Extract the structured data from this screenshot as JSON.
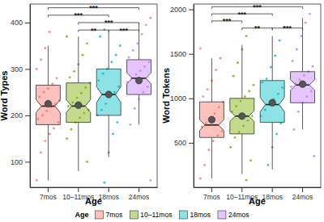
{
  "chart_data": [
    {
      "type": "box",
      "x_label": "Age",
      "y_label": "Word Types",
      "categories": [
        "7mos",
        "10–11mos",
        "18mos",
        "24mos"
      ],
      "colors": [
        "#F8766D",
        "#7CAE00",
        "#00BFC4",
        "#C77CFF"
      ],
      "ylim": [
        45,
        440
      ],
      "yticks": [
        100,
        200,
        300,
        400
      ],
      "grid": false,
      "legend": "bottom",
      "legend_title": "Age",
      "boxes": [
        {
          "whisker_low": 60,
          "q1": 180,
          "notch_low": 206,
          "median": 220,
          "notch_high": 234,
          "q3": 265,
          "whisker_high": 350,
          "mean": 225
        },
        {
          "whisker_low": 80,
          "q1": 185,
          "notch_low": 206,
          "median": 220,
          "notch_high": 234,
          "q3": 270,
          "whisker_high": 370,
          "mean": 222
        },
        {
          "whisker_low": 110,
          "q1": 200,
          "notch_low": 228,
          "median": 245,
          "notch_high": 262,
          "q3": 300,
          "whisker_high": 380,
          "mean": 245
        },
        {
          "whisker_low": 180,
          "q1": 245,
          "notch_low": 268,
          "median": 280,
          "notch_high": 292,
          "q3": 320,
          "whisker_high": 400,
          "mean": 275
        }
      ],
      "points": [
        [
          60,
          120,
          145,
          160,
          172,
          185,
          192,
          200,
          210,
          218,
          225,
          232,
          240,
          250,
          258,
          268,
          280,
          300,
          320,
          345,
          380
        ],
        [
          40,
          100,
          150,
          170,
          185,
          195,
          205,
          212,
          220,
          228,
          238,
          248,
          260,
          270,
          282,
          295,
          310,
          330,
          355,
          370
        ],
        [
          55,
          120,
          160,
          185,
          200,
          212,
          225,
          240,
          250,
          262,
          275,
          290,
          300,
          315,
          330,
          350,
          370,
          385
        ],
        [
          60,
          180,
          215,
          235,
          250,
          262,
          272,
          280,
          288,
          296,
          305,
          315,
          325,
          340,
          355,
          375,
          395,
          410
        ]
      ],
      "brackets": [
        {
          "from": "7mos",
          "to": "24mos",
          "y": 432,
          "label": "***"
        },
        {
          "from": "7mos",
          "to": "18mos",
          "y": 416,
          "label": "***"
        },
        {
          "from": "10–11mos",
          "to": "24mos",
          "y": 400,
          "label": "***"
        },
        {
          "from": "10–11mos",
          "to": "18mos",
          "y": 384,
          "label": "**"
        },
        {
          "from": "18mos",
          "to": "24mos",
          "y": 384,
          "label": "***"
        }
      ]
    },
    {
      "type": "box",
      "x_label": "Age",
      "y_label": "Word Tokens",
      "categories": [
        "7mos",
        "10–11mos",
        "18mos",
        "24mos"
      ],
      "colors": [
        "#F8766D",
        "#7CAE00",
        "#00BFC4",
        "#C77CFF"
      ],
      "ylim": [
        0,
        2060
      ],
      "yticks": [
        500,
        1000,
        1500,
        2000
      ],
      "grid": false,
      "boxes": [
        {
          "whisker_low": 100,
          "q1": 560,
          "notch_low": 640,
          "median": 700,
          "notch_high": 760,
          "q3": 960,
          "whisker_high": 1450,
          "mean": 760
        },
        {
          "whisker_low": 150,
          "q1": 600,
          "notch_low": 740,
          "median": 800,
          "notch_high": 860,
          "q3": 1000,
          "whisker_high": 1600,
          "mean": 800
        },
        {
          "whisker_low": 200,
          "q1": 730,
          "notch_low": 850,
          "median": 930,
          "notch_high": 1010,
          "q3": 1200,
          "whisker_high": 1700,
          "mean": 950
        },
        {
          "whisker_low": 650,
          "q1": 950,
          "notch_low": 1090,
          "median": 1150,
          "notch_high": 1210,
          "q3": 1300,
          "whisker_high": 1900,
          "mean": 1160
        }
      ],
      "points": [
        [
          100,
          250,
          420,
          520,
          580,
          630,
          680,
          720,
          770,
          830,
          900,
          960,
          1020,
          1100,
          1200,
          1320,
          1450,
          1560
        ],
        [
          80,
          300,
          450,
          560,
          620,
          690,
          750,
          800,
          850,
          910,
          970,
          1020,
          1080,
          1150,
          1250,
          1400,
          1550,
          1700
        ],
        [
          250,
          450,
          600,
          720,
          800,
          870,
          930,
          990,
          1050,
          1120,
          1180,
          1220,
          1350,
          1480,
          1650,
          1800
        ],
        [
          350,
          650,
          850,
          950,
          1020,
          1080,
          1130,
          1170,
          1210,
          1260,
          1300,
          1360,
          1420,
          1550,
          1700,
          1850,
          1950
        ]
      ],
      "brackets": [
        {
          "from": "7mos",
          "to": "24mos",
          "y": 2030,
          "label": "***"
        },
        {
          "from": "7mos",
          "to": "18mos",
          "y": 1950,
          "label": "***"
        },
        {
          "from": "7mos",
          "to": "10–11mos",
          "y": 1870,
          "label": "***"
        },
        {
          "from": "10–11mos",
          "to": "18mos",
          "y": 1790,
          "label": "**"
        },
        {
          "from": "18mos",
          "to": "24mos",
          "y": 1790,
          "label": "***"
        }
      ]
    }
  ]
}
